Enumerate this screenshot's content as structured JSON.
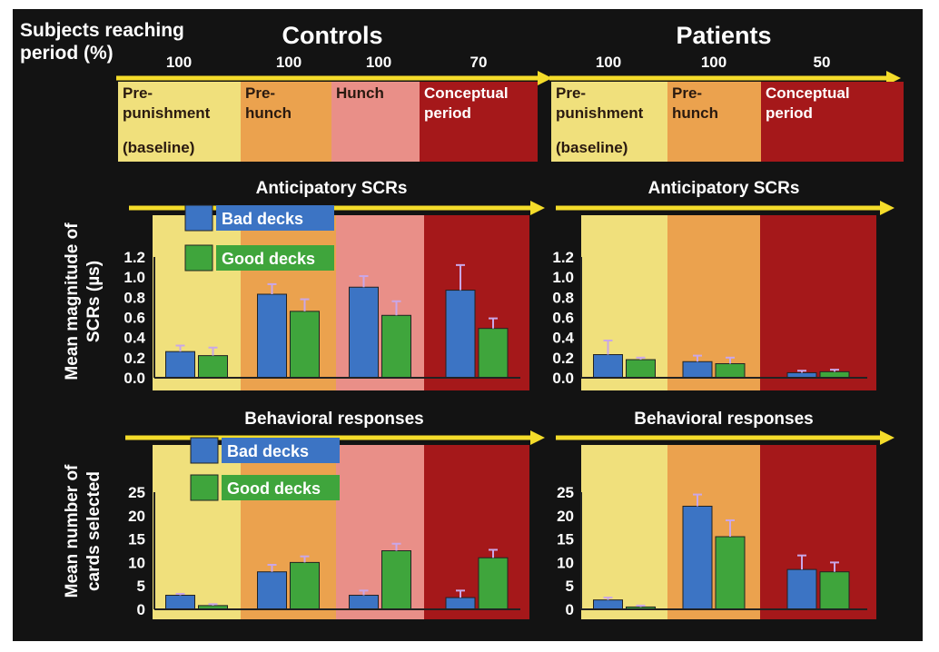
{
  "colors": {
    "background": "#131313",
    "arrow": "#f4dc2a",
    "baseline": "#f0e07c",
    "prehunch": "#eba24e",
    "hunch": "#e98f88",
    "conceptual": "#a5181a",
    "bad": "#3c74c4",
    "good": "#3fa53c",
    "error": "#c9a7e8"
  },
  "header": {
    "subjects_label_line1": "Subjects reaching",
    "subjects_label_line2": "period (%)",
    "controls_title": "Controls",
    "patients_title": "Patients"
  },
  "panels": [
    {
      "key": "controls",
      "percentages": [
        "100",
        "100",
        "100",
        "70"
      ],
      "periods": [
        {
          "line1": "Pre-",
          "line2": "punishment",
          "line3": "(baseline)",
          "color": "baseline"
        },
        {
          "line1": "Pre-",
          "line2": "hunch",
          "line3": "",
          "color": "prehunch"
        },
        {
          "line1": "Hunch",
          "line2": "",
          "line3": "",
          "color": "hunch"
        },
        {
          "line1": "Conceptual",
          "line2": "period",
          "line3": "",
          "color": "conceptual"
        }
      ]
    },
    {
      "key": "patients",
      "percentages": [
        "100",
        "100",
        "50"
      ],
      "periods": [
        {
          "line1": "Pre-",
          "line2": "punishment",
          "line3": "(baseline)",
          "color": "baseline"
        },
        {
          "line1": "Pre-",
          "line2": "hunch",
          "line3": "",
          "color": "prehunch"
        },
        {
          "line1": "Conceptual",
          "line2": "period",
          "line3": "",
          "color": "conceptual"
        }
      ]
    }
  ],
  "chart_data": [
    {
      "id": "scr-controls",
      "type": "bar",
      "title": "Anticipatory SCRs",
      "ylabel": "Mean magnitude of SCRs (µs)",
      "ylim": [
        0,
        1.2
      ],
      "yticks": [
        "0.0",
        "0.2",
        "0.4",
        "0.6",
        "0.8",
        "1.0",
        "1.2"
      ],
      "legend": [
        "Bad decks",
        "Good decks"
      ],
      "categories": [
        "Pre-punishment (baseline)",
        "Pre-hunch",
        "Hunch",
        "Conceptual period"
      ],
      "series": [
        {
          "name": "Bad decks",
          "values": [
            0.26,
            0.83,
            0.9,
            0.87
          ],
          "errors": [
            0.06,
            0.1,
            0.11,
            0.25
          ]
        },
        {
          "name": "Good decks",
          "values": [
            0.22,
            0.66,
            0.62,
            0.49
          ],
          "errors": [
            0.08,
            0.12,
            0.14,
            0.1
          ]
        }
      ]
    },
    {
      "id": "scr-patients",
      "type": "bar",
      "title": "Anticipatory SCRs",
      "ylabel": "",
      "ylim": [
        0,
        1.2
      ],
      "yticks": [
        "0.0",
        "0.2",
        "0.4",
        "0.6",
        "0.8",
        "1.0",
        "1.2"
      ],
      "legend": [],
      "categories": [
        "Pre-punishment (baseline)",
        "Pre-hunch",
        "Conceptual period"
      ],
      "series": [
        {
          "name": "Bad decks",
          "values": [
            0.23,
            0.16,
            0.05
          ],
          "errors": [
            0.14,
            0.06,
            0.02
          ]
        },
        {
          "name": "Good decks",
          "values": [
            0.18,
            0.14,
            0.06
          ],
          "errors": [
            0.02,
            0.06,
            0.02
          ]
        }
      ]
    },
    {
      "id": "beh-controls",
      "type": "bar",
      "title": "Behavioral responses",
      "ylabel": "Mean number of cards selected",
      "ylim": [
        0,
        25
      ],
      "yticks": [
        "0",
        "5",
        "10",
        "15",
        "20",
        "25"
      ],
      "legend": [
        "Bad decks",
        "Good decks"
      ],
      "categories": [
        "Pre-punishment (baseline)",
        "Pre-hunch",
        "Hunch",
        "Conceptual period"
      ],
      "series": [
        {
          "name": "Bad decks",
          "values": [
            3,
            8,
            3,
            2.5
          ],
          "errors": [
            0.3,
            1.5,
            1,
            1.5
          ]
        },
        {
          "name": "Good decks",
          "values": [
            0.8,
            10,
            12.5,
            11
          ],
          "errors": [
            0.3,
            1.3,
            1.5,
            1.7
          ]
        }
      ]
    },
    {
      "id": "beh-patients",
      "type": "bar",
      "title": "Behavioral responses",
      "ylabel": "",
      "ylim": [
        0,
        25
      ],
      "yticks": [
        "0",
        "5",
        "10",
        "15",
        "20",
        "25"
      ],
      "legend": [],
      "categories": [
        "Pre-punishment (baseline)",
        "Pre-hunch",
        "Conceptual period"
      ],
      "series": [
        {
          "name": "Bad decks",
          "values": [
            2,
            22,
            8.5
          ],
          "errors": [
            0.5,
            2.5,
            3
          ]
        },
        {
          "name": "Good decks",
          "values": [
            0.5,
            15.5,
            8
          ],
          "errors": [
            0.3,
            3.5,
            2
          ]
        }
      ]
    }
  ]
}
